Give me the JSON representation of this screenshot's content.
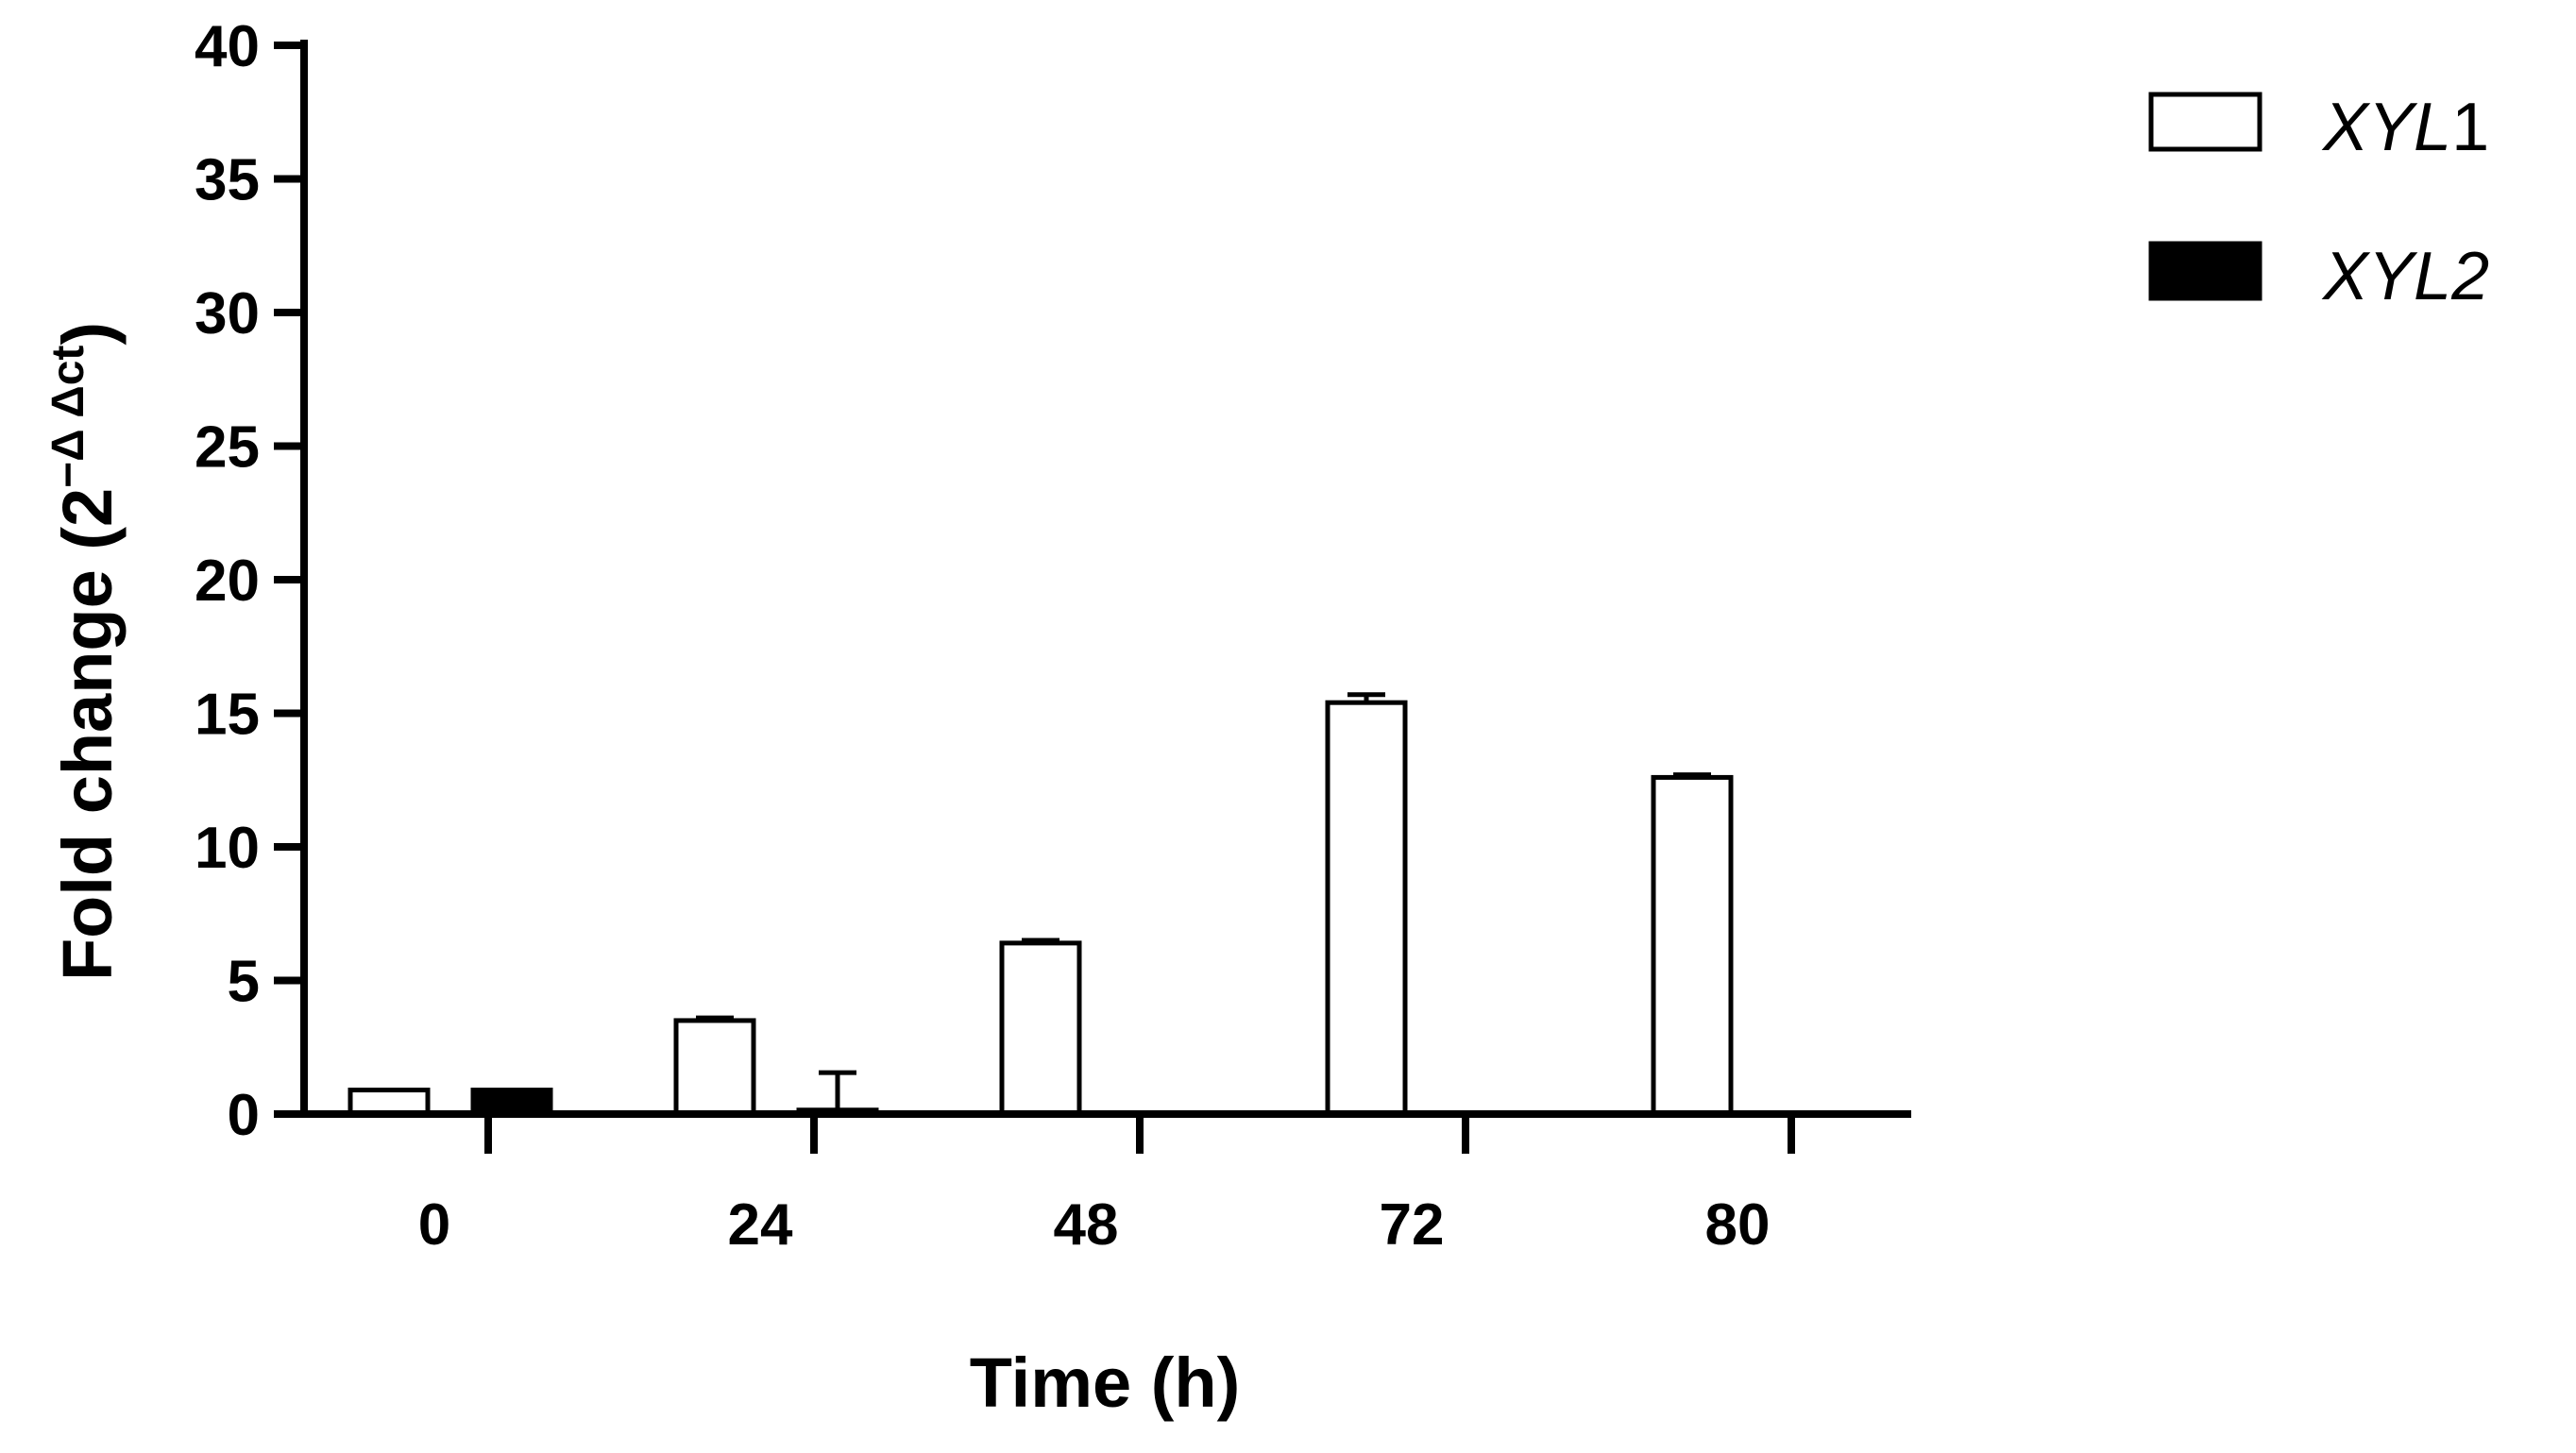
{
  "chart_data": {
    "type": "bar",
    "title": "",
    "xlabel": "Time (h)",
    "ylabel": {
      "prefix": "Fold change (2",
      "superscript": "−Δ Δct",
      "suffix": ")"
    },
    "categories": [
      "0",
      "24",
      "48",
      "72",
      "80"
    ],
    "ylim": [
      0,
      40
    ],
    "yticks": [
      "0",
      "5",
      "10",
      "15",
      "20",
      "25",
      "30",
      "35",
      "40"
    ],
    "series": [
      {
        "name_italic": "XYL",
        "name_suffix": "1",
        "fill": "#ffffff",
        "values": [
          0.9,
          3.5,
          6.4,
          15.4,
          12.6
        ],
        "errors": [
          0,
          0.1,
          0.1,
          0.3,
          0.1
        ]
      },
      {
        "name_italic": "XYL",
        "name_suffix": "2",
        "fill": "#000000",
        "values": [
          0.9,
          0.15,
          0,
          0,
          0
        ],
        "errors": [
          0,
          1.4,
          0,
          0,
          0
        ]
      }
    ],
    "legend": "top-right",
    "grid": false
  }
}
